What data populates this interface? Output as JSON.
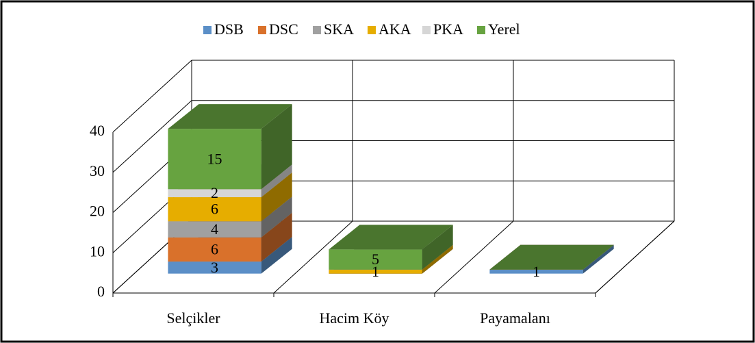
{
  "chart_data": {
    "type": "bar3d_stacked",
    "categories": [
      "Selçikler",
      "Hacim Köy",
      "Payamalanı"
    ],
    "series": [
      {
        "name": "DSB",
        "color": "#5b8fc7",
        "values": [
          3,
          0,
          1
        ]
      },
      {
        "name": "DSC",
        "color": "#d9712b",
        "values": [
          6,
          0,
          0
        ]
      },
      {
        "name": "SKA",
        "color": "#a0a0a0",
        "values": [
          4,
          0,
          0
        ]
      },
      {
        "name": "AKA",
        "color": "#e6ad00",
        "values": [
          6,
          1,
          0
        ]
      },
      {
        "name": "PKA",
        "color": "#d6d6d6",
        "values": [
          2,
          0,
          0
        ]
      },
      {
        "name": "Yerel",
        "color": "#67a340",
        "values": [
          15,
          5,
          0
        ]
      }
    ],
    "ylim": [
      0,
      40
    ],
    "yticks": [
      0,
      10,
      20,
      30,
      40
    ],
    "grid": true,
    "legend": "top"
  }
}
